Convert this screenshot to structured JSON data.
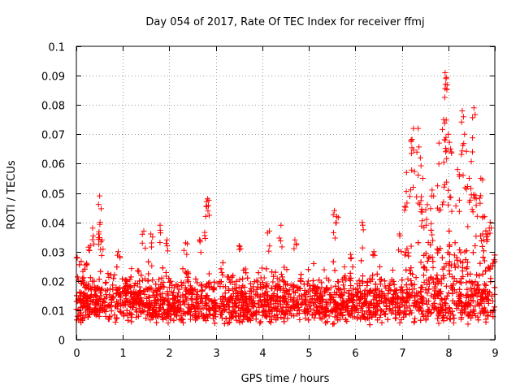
{
  "chart_data": {
    "type": "scatter",
    "title": "Day 054 of 2017, Rate Of TEC Index for receiver ffmj",
    "xlabel": "GPS time / hours",
    "ylabel": "ROTI / TECUs",
    "xlim": [
      0,
      9
    ],
    "ylim": [
      0,
      0.1
    ],
    "xticks": [
      "0",
      "1",
      "2",
      "3",
      "4",
      "5",
      "6",
      "7",
      "8",
      "9"
    ],
    "yticks": [
      "0",
      "0.01",
      "0.02",
      "0.03",
      "0.04",
      "0.05",
      "0.06",
      "0.07",
      "0.08",
      "0.09",
      "0.1"
    ],
    "grid": true,
    "marker": "+",
    "color": "#ff0000",
    "n_points": 4200,
    "baseline_range": [
      0.005,
      0.028
    ],
    "notable_points": [
      {
        "x": 0.02,
        "y": 0.028
      },
      {
        "x": 0.22,
        "y": 0.026
      },
      {
        "x": 0.3,
        "y": 0.032
      },
      {
        "x": 0.35,
        "y": 0.038
      },
      {
        "x": 0.48,
        "y": 0.036
      },
      {
        "x": 0.5,
        "y": 0.049
      },
      {
        "x": 0.51,
        "y": 0.04
      },
      {
        "x": 0.55,
        "y": 0.034
      },
      {
        "x": 0.9,
        "y": 0.03
      },
      {
        "x": 1.45,
        "y": 0.037
      },
      {
        "x": 1.6,
        "y": 0.036
      },
      {
        "x": 1.8,
        "y": 0.039
      },
      {
        "x": 1.95,
        "y": 0.034
      },
      {
        "x": 2.35,
        "y": 0.033
      },
      {
        "x": 2.65,
        "y": 0.034
      },
      {
        "x": 2.78,
        "y": 0.042
      },
      {
        "x": 2.82,
        "y": 0.048
      },
      {
        "x": 2.8,
        "y": 0.047
      },
      {
        "x": 3.5,
        "y": 0.032
      },
      {
        "x": 4.15,
        "y": 0.037
      },
      {
        "x": 4.4,
        "y": 0.039
      },
      {
        "x": 4.7,
        "y": 0.034
      },
      {
        "x": 5.55,
        "y": 0.044
      },
      {
        "x": 5.6,
        "y": 0.042
      },
      {
        "x": 5.9,
        "y": 0.029
      },
      {
        "x": 6.15,
        "y": 0.04
      },
      {
        "x": 6.4,
        "y": 0.03
      },
      {
        "x": 6.95,
        "y": 0.036
      },
      {
        "x": 7.1,
        "y": 0.057
      },
      {
        "x": 7.2,
        "y": 0.068
      },
      {
        "x": 7.25,
        "y": 0.072
      },
      {
        "x": 7.35,
        "y": 0.072
      },
      {
        "x": 7.4,
        "y": 0.062
      },
      {
        "x": 7.45,
        "y": 0.055
      },
      {
        "x": 7.55,
        "y": 0.046
      },
      {
        "x": 7.65,
        "y": 0.051
      },
      {
        "x": 7.8,
        "y": 0.067
      },
      {
        "x": 7.9,
        "y": 0.075
      },
      {
        "x": 7.93,
        "y": 0.091
      },
      {
        "x": 7.94,
        "y": 0.087
      },
      {
        "x": 7.95,
        "y": 0.089
      },
      {
        "x": 8.0,
        "y": 0.07
      },
      {
        "x": 8.05,
        "y": 0.065
      },
      {
        "x": 8.2,
        "y": 0.058
      },
      {
        "x": 8.3,
        "y": 0.078
      },
      {
        "x": 8.35,
        "y": 0.07
      },
      {
        "x": 8.45,
        "y": 0.055
      },
      {
        "x": 8.55,
        "y": 0.079
      },
      {
        "x": 8.52,
        "y": 0.064
      },
      {
        "x": 8.6,
        "y": 0.048
      },
      {
        "x": 8.7,
        "y": 0.055
      },
      {
        "x": 8.75,
        "y": 0.042
      },
      {
        "x": 8.85,
        "y": 0.036
      },
      {
        "x": 8.9,
        "y": 0.04
      }
    ]
  }
}
